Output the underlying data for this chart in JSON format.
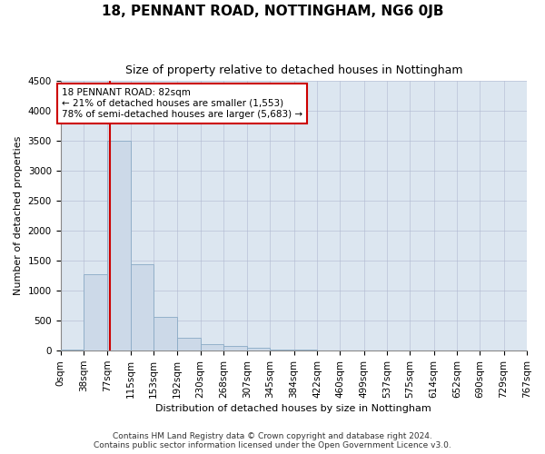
{
  "title": "18, PENNANT ROAD, NOTTINGHAM, NG6 0JB",
  "subtitle": "Size of property relative to detached houses in Nottingham",
  "xlabel": "Distribution of detached houses by size in Nottingham",
  "ylabel": "Number of detached properties",
  "footer_line1": "Contains HM Land Registry data © Crown copyright and database right 2024.",
  "footer_line2": "Contains public sector information licensed under the Open Government Licence v3.0.",
  "annotation_line1": "18 PENNANT ROAD: 82sqm",
  "annotation_line2": "← 21% of detached houses are smaller (1,553)",
  "annotation_line3": "78% of semi-detached houses are larger (5,683) →",
  "property_size": 82,
  "bar_color": "#ccd9e8",
  "bar_edge_color": "#8aaac5",
  "red_line_color": "#cc0000",
  "annotation_box_color": "#cc0000",
  "background_color": "#ffffff",
  "plot_bg_color": "#dce6f0",
  "grid_color": "#b0b8d0",
  "ylim": [
    0,
    4500
  ],
  "yticks": [
    0,
    500,
    1000,
    1500,
    2000,
    2500,
    3000,
    3500,
    4000,
    4500
  ],
  "bin_edges": [
    0,
    38,
    77,
    115,
    153,
    192,
    230,
    268,
    307,
    345,
    384,
    422,
    460,
    499,
    537,
    575,
    614,
    652,
    690,
    729,
    767
  ],
  "bin_labels": [
    "0sqm",
    "38sqm",
    "77sqm",
    "115sqm",
    "153sqm",
    "192sqm",
    "230sqm",
    "268sqm",
    "307sqm",
    "345sqm",
    "384sqm",
    "422sqm",
    "460sqm",
    "499sqm",
    "537sqm",
    "575sqm",
    "614sqm",
    "652sqm",
    "690sqm",
    "729sqm",
    "767sqm"
  ],
  "bar_heights": [
    25,
    1270,
    3500,
    1450,
    560,
    220,
    110,
    75,
    45,
    25,
    15,
    10,
    5,
    3,
    0,
    2,
    0,
    0,
    0,
    0
  ],
  "title_fontsize": 11,
  "subtitle_fontsize": 9,
  "ylabel_fontsize": 8,
  "xlabel_fontsize": 8,
  "tick_fontsize": 7.5,
  "footer_fontsize": 6.5,
  "annotation_fontsize": 7.5
}
